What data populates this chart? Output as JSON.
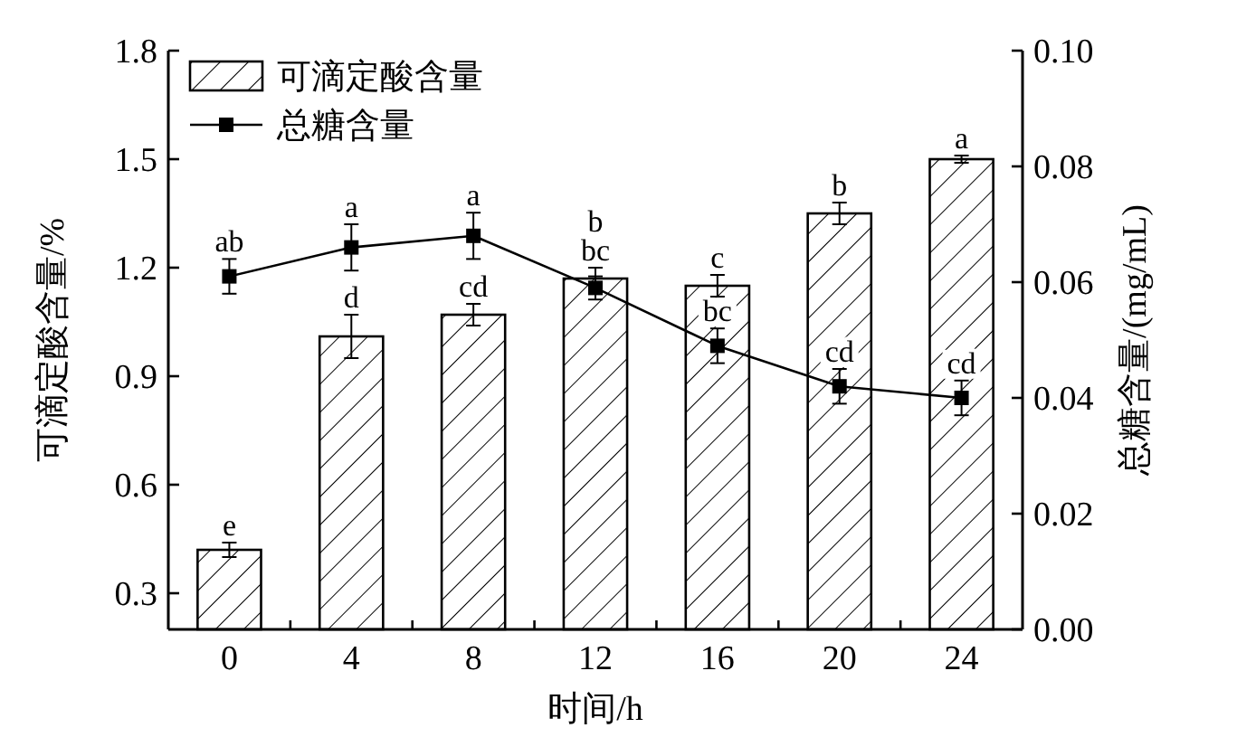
{
  "chart_data": {
    "type": "bar",
    "xlabel": "时间/h",
    "ylabel": "可滴定酸含量/%",
    "y2label": "总糖含量/(mg/mL)",
    "categories": [
      "0",
      "4",
      "8",
      "12",
      "16",
      "20",
      "24"
    ],
    "series": [
      {
        "name": "可滴定酸含量",
        "color": "#000000",
        "values": [
          0.42,
          1.01,
          1.07,
          1.17,
          1.15,
          1.35,
          1.5
        ],
        "errors": [
          0.02,
          0.06,
          0.03,
          0.03,
          0.03,
          0.03,
          0.01
        ],
        "value_labels": [
          "e",
          "d",
          "cd",
          "bc",
          "c",
          "b",
          "a"
        ]
      },
      {
        "name": "总糖含量",
        "type": "line",
        "axis": "y2",
        "color": "#000000",
        "marker": "square",
        "values": [
          0.061,
          0.066,
          0.068,
          0.059,
          0.049,
          0.042,
          0.04
        ],
        "errors": [
          0.003,
          0.004,
          0.004,
          0.002,
          0.003,
          0.003,
          0.003
        ],
        "value_labels": [
          "ab",
          "a",
          "a",
          "b",
          "bc",
          "cd",
          "cd"
        ]
      }
    ],
    "ylim": [
      0.2,
      1.8
    ],
    "yticks": [
      0.3,
      0.6,
      0.9,
      1.2,
      1.5,
      1.8
    ],
    "y2lim": [
      0,
      0.1
    ],
    "y2ticks": [
      {
        "value": 0,
        "label": "0.00"
      },
      {
        "value": 0.02,
        "label": "0.02"
      },
      {
        "value": 0.04,
        "label": "0.04"
      },
      {
        "value": 0.06,
        "label": "0.06"
      },
      {
        "value": 0.08,
        "label": "0.08"
      },
      {
        "value": 0.1,
        "label": "0.10"
      }
    ],
    "legend": "top left",
    "grid": false
  }
}
